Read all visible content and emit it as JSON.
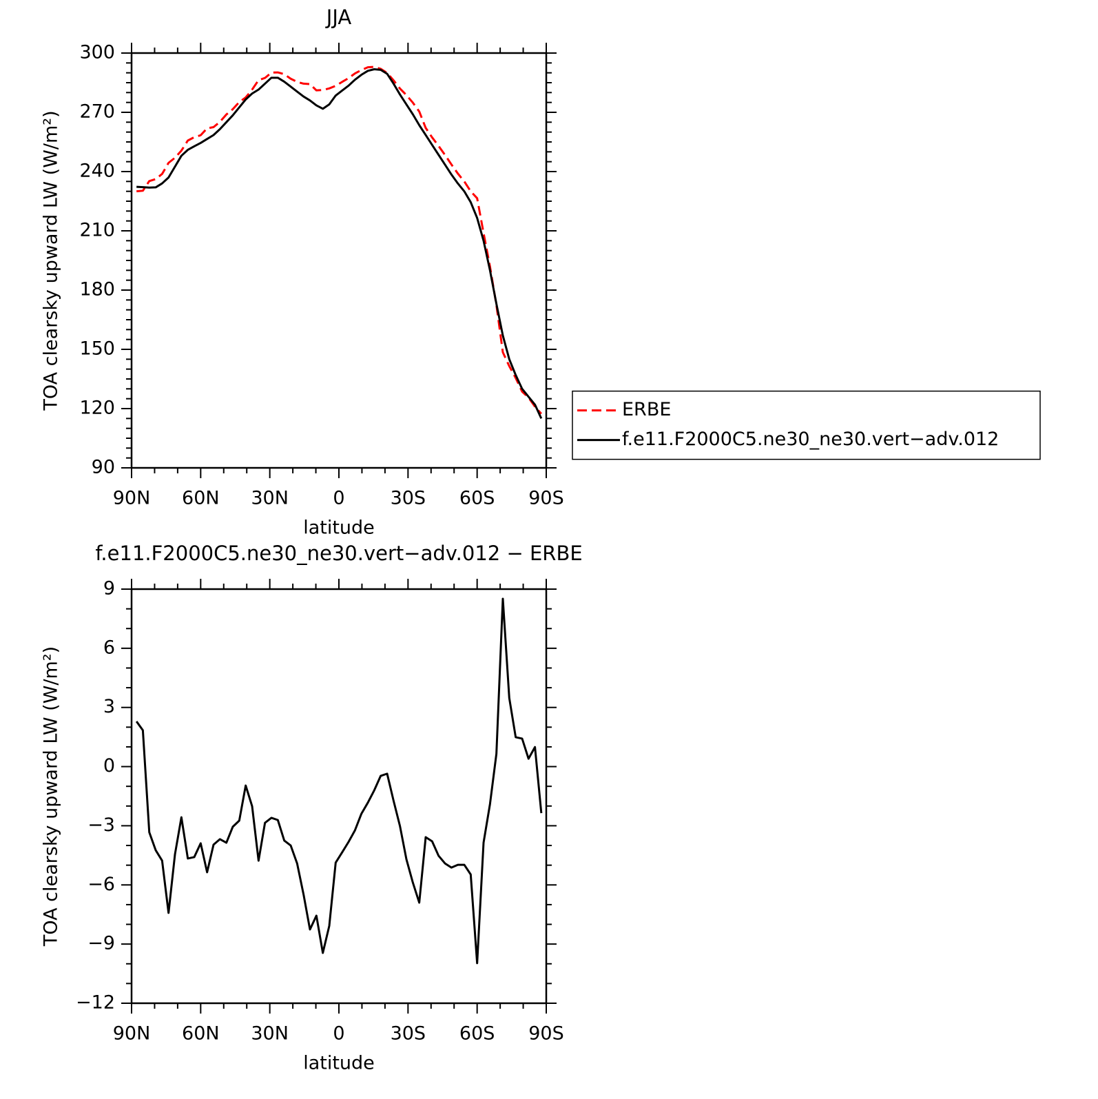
{
  "chart_data": [
    {
      "type": "line",
      "title": "JJA",
      "ylabel": "TOA clearsky upward LW (W/m²)",
      "xlabel": "latitude",
      "x": [
        87.86,
        85.1,
        82.31,
        79.53,
        76.74,
        73.95,
        71.16,
        68.37,
        65.58,
        62.79,
        60.0,
        57.21,
        54.42,
        51.63,
        48.84,
        46.05,
        43.25,
        40.46,
        37.67,
        34.88,
        32.09,
        29.3,
        26.51,
        23.72,
        20.93,
        18.14,
        15.35,
        12.56,
        9.77,
        6.98,
        4.19,
        1.4,
        -1.4,
        -4.19,
        -6.98,
        -9.77,
        -12.56,
        -15.35,
        -18.14,
        -20.93,
        -23.72,
        -26.51,
        -29.3,
        -32.09,
        -34.88,
        -37.67,
        -40.46,
        -43.25,
        -46.05,
        -48.84,
        -51.63,
        -54.42,
        -57.21,
        -60.0,
        -62.79,
        -65.58,
        -68.37,
        -71.16,
        -73.95,
        -76.74,
        -79.53,
        -82.31,
        -85.1,
        -87.86
      ],
      "series": [
        {
          "name": "ERBE",
          "color": "#ff0000",
          "linestyle": "dashed",
          "values": [
            230.0,
            230.3,
            235.2,
            236.2,
            238.8,
            244.4,
            247.0,
            250.6,
            255.7,
            257.4,
            258.4,
            261.9,
            262.5,
            265.2,
            268.9,
            271.6,
            275.2,
            277.5,
            281.5,
            286.3,
            287.4,
            290.1,
            290.2,
            289.3,
            287.0,
            285.4,
            284.5,
            284.3,
            281.1,
            281.3,
            282.1,
            283.4,
            285.4,
            287.3,
            289.7,
            291.4,
            292.8,
            293.0,
            292.0,
            289.9,
            286.2,
            282.0,
            278.7,
            274.9,
            270.4,
            262.1,
            257.3,
            253.0,
            248.4,
            243.6,
            239.0,
            235.0,
            230.0,
            226.5,
            208.9,
            191.9,
            172.4,
            148.5,
            141.5,
            135.5,
            128.6,
            125.6,
            121.0,
            117.4
          ]
        },
        {
          "name": "f.e11.F2000C5.ne30_ne30.vert−adv.012",
          "color": "#000000",
          "linestyle": "solid",
          "values": [
            232.3,
            232.1,
            231.9,
            232.0,
            234.0,
            237.0,
            242.5,
            248.0,
            251.0,
            252.8,
            254.5,
            256.5,
            258.5,
            261.5,
            265.0,
            268.5,
            272.5,
            276.5,
            279.5,
            281.5,
            284.5,
            287.5,
            287.5,
            285.5,
            283.0,
            280.5,
            278.0,
            276.0,
            273.5,
            271.8,
            274.0,
            278.5,
            281.0,
            283.5,
            286.5,
            289.0,
            291.0,
            291.8,
            291.5,
            289.5,
            284.5,
            279.0,
            274.0,
            269.0,
            263.5,
            258.5,
            253.5,
            248.5,
            243.5,
            238.5,
            234.0,
            230.0,
            224.5,
            216.5,
            205.0,
            190.0,
            173.0,
            157.0,
            145.0,
            137.0,
            130.0,
            126.0,
            122.0,
            115.0
          ]
        }
      ],
      "xlim": [
        90,
        -90
      ],
      "xticks": [
        {
          "value": 90,
          "label": "90N"
        },
        {
          "value": 60,
          "label": "60N"
        },
        {
          "value": 30,
          "label": "30N"
        },
        0,
        {
          "value": -30,
          "label": "30S"
        },
        {
          "value": -60,
          "label": "60S"
        },
        {
          "value": -90,
          "label": "90S"
        }
      ],
      "ylim": [
        90,
        300
      ],
      "yticks": [
        90,
        120,
        150,
        180,
        210,
        240,
        270,
        300
      ],
      "legend": "right"
    },
    {
      "type": "line",
      "title": "f.e11.F2000C5.ne30_ne30.vert−adv.012 − ERBE",
      "ylabel": "TOA clearsky upward LW (W/m²)",
      "xlabel": "latitude",
      "x": [
        87.86,
        85.1,
        82.31,
        79.53,
        76.74,
        73.95,
        71.16,
        68.37,
        65.58,
        62.79,
        60.0,
        57.21,
        54.42,
        51.63,
        48.84,
        46.05,
        43.25,
        40.46,
        37.67,
        34.88,
        32.09,
        29.3,
        26.51,
        23.72,
        20.93,
        18.14,
        15.35,
        12.56,
        9.77,
        6.98,
        4.19,
        1.4,
        -1.4,
        -4.19,
        -6.98,
        -9.77,
        -12.56,
        -15.35,
        -18.14,
        -20.93,
        -23.72,
        -26.51,
        -29.3,
        -32.09,
        -34.88,
        -37.67,
        -40.46,
        -43.25,
        -46.05,
        -48.84,
        -51.63,
        -54.42,
        -57.21,
        -60.0,
        -62.79,
        -65.58,
        -68.37,
        -71.16,
        -73.95,
        -76.74,
        -79.53,
        -82.31,
        -85.1,
        -87.86
      ],
      "color": "#000000",
      "values": [
        2.29,
        1.84,
        -3.33,
        -4.24,
        -4.77,
        -7.42,
        -4.45,
        -2.57,
        -4.66,
        -4.59,
        -3.89,
        -5.36,
        -3.96,
        -3.68,
        -3.86,
        -3.05,
        -2.74,
        -0.96,
        -2.01,
        -4.77,
        -2.85,
        -2.6,
        -2.71,
        -3.75,
        -4.0,
        -4.91,
        -6.48,
        -8.26,
        -7.56,
        -9.45,
        -8.08,
        -4.87,
        -4.35,
        -3.82,
        -3.23,
        -2.39,
        -1.83,
        -1.2,
        -0.47,
        -0.36,
        -1.73,
        -3.02,
        -4.7,
        -5.88,
        -6.9,
        -3.58,
        -3.79,
        -4.52,
        -4.91,
        -5.12,
        -4.98,
        -4.98,
        -5.47,
        -9.97,
        -3.86,
        -1.9,
        0.65,
        8.51,
        3.48,
        1.49,
        1.42,
        0.4,
        0.99,
        -2.36
      ],
      "xlim": [
        90,
        -90
      ],
      "xticks": [
        {
          "value": 90,
          "label": "90N"
        },
        {
          "value": 60,
          "label": "60N"
        },
        {
          "value": 30,
          "label": "30N"
        },
        0,
        {
          "value": -30,
          "label": "30S"
        },
        {
          "value": -60,
          "label": "60S"
        },
        {
          "value": -90,
          "label": "90S"
        }
      ],
      "ylim": [
        -12,
        9
      ],
      "yticks": [
        {
          "value": -12,
          "label": "−12"
        },
        {
          "value": -9,
          "label": "−9"
        },
        {
          "value": -6,
          "label": "−6"
        },
        {
          "value": -3,
          "label": "−3"
        },
        0,
        3,
        6,
        9
      ]
    }
  ]
}
